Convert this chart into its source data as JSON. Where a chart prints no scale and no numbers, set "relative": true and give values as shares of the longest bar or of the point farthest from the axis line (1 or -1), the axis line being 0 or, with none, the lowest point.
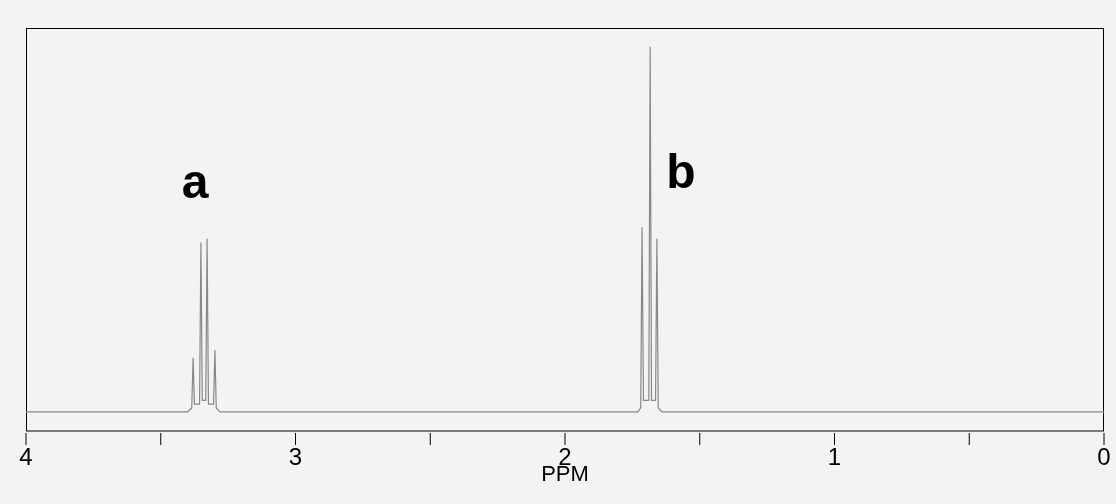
{
  "chart_data": {
    "type": "line",
    "relative": true,
    "xlabel": "PPM",
    "xlim": [
      4,
      0
    ],
    "xticks": [
      4,
      {
        "value": 3.5,
        "label": null
      },
      3,
      {
        "value": 2.5,
        "label": null
      },
      2,
      {
        "value": 1.5,
        "label": null
      },
      1,
      {
        "value": 0.5,
        "label": null
      },
      0
    ],
    "annotations": [
      "a",
      "b"
    ],
    "grid": false,
    "legend": false,
    "marker": "none",
    "line_style": "solid",
    "series": [
      {
        "color": "#888888",
        "x": [
          4,
          3.4,
          3.385,
          3.38,
          3.375,
          3.356,
          3.351,
          3.346,
          3.333,
          3.328,
          3.323,
          3.304,
          3.299,
          3.294,
          3.28,
          1.73,
          1.719,
          1.714,
          1.709,
          1.689,
          1.684,
          1.679,
          1.664,
          1.659,
          1.654,
          1.64,
          0
        ],
        "values": [
          0.05,
          0.05,
          0.06,
          0.19,
          0.07,
          0.07,
          0.49,
          0.08,
          0.08,
          0.5,
          0.07,
          0.07,
          0.21,
          0.06,
          0.05,
          0.05,
          0.06,
          0.53,
          0.08,
          0.08,
          1.0,
          0.08,
          0.08,
          0.5,
          0.06,
          0.05,
          0.05
        ]
      }
    ]
  }
}
